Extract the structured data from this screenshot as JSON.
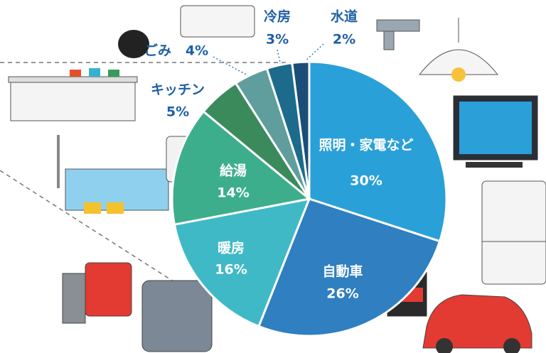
{
  "chart_data": {
    "type": "pie",
    "categories": [
      "照明・家電など",
      "自動車",
      "暖房",
      "給湯",
      "キッチン",
      "ごみ",
      "冷房",
      "水道"
    ],
    "values": [
      30,
      26,
      16,
      14,
      5,
      4,
      3,
      2
    ],
    "value_labels": [
      "30%",
      "26%",
      "16%",
      "14%",
      "5%",
      "4%",
      "3%",
      "2%"
    ],
    "colors": [
      "#2aa0d8",
      "#2f7fc1",
      "#40b9c6",
      "#3dae8c",
      "#3b8a5c",
      "#5f9e9c",
      "#1d6b8c",
      "#1a4e78"
    ]
  }
}
